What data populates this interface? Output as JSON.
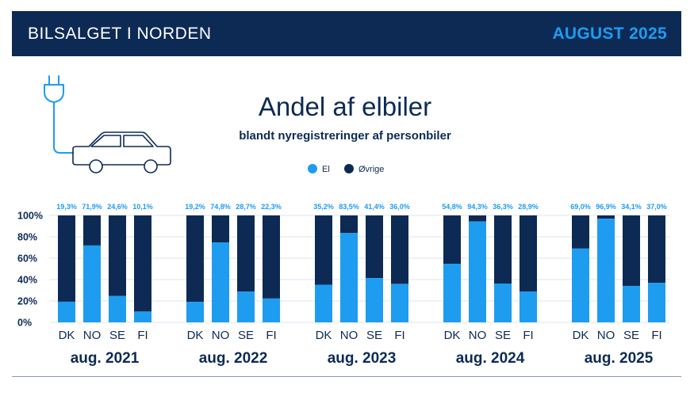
{
  "header": {
    "left": "BILSALGET I NORDEN",
    "right": "AUGUST 2025"
  },
  "icons": [
    "plug-icon",
    "car-icon"
  ],
  "colors": {
    "header_bg": "#0d2a55",
    "accent": "#1e9cf0",
    "el": "#1e9cf0",
    "ovrige": "#0d2a55"
  },
  "chart_data": {
    "type": "bar",
    "stacked": true,
    "title": "Andel af elbiler",
    "subtitle": "blandt nyregistreringer af personbiler",
    "legend": [
      "El",
      "Øvrige"
    ],
    "y_ticks": [
      "0%",
      "20%",
      "40%",
      "60%",
      "80%",
      "100%"
    ],
    "ylim": [
      0,
      100
    ],
    "groups": [
      {
        "label": "aug. 2021",
        "categories": [
          "DK",
          "NO",
          "SE",
          "FI"
        ],
        "values": [
          19.3,
          71.9,
          24.6,
          10.1
        ],
        "labels": [
          "19,3%",
          "71,9%",
          "24,6%",
          "10,1%"
        ]
      },
      {
        "label": "aug. 2022",
        "categories": [
          "DK",
          "NO",
          "SE",
          "FI"
        ],
        "values": [
          19.2,
          74.8,
          28.7,
          22.3
        ],
        "labels": [
          "19,2%",
          "74,8%",
          "28,7%",
          "22,3%"
        ]
      },
      {
        "label": "aug. 2023",
        "categories": [
          "DK",
          "NO",
          "SE",
          "FI"
        ],
        "values": [
          35.2,
          83.5,
          41.4,
          36.0
        ],
        "labels": [
          "35,2%",
          "83,5%",
          "41,4%",
          "36,0%"
        ]
      },
      {
        "label": "aug. 2024",
        "categories": [
          "DK",
          "NO",
          "SE",
          "FI"
        ],
        "values": [
          54.8,
          94.3,
          36.3,
          28.9
        ],
        "labels": [
          "54,8%",
          "94,3%",
          "36,3%",
          "28,9%"
        ]
      },
      {
        "label": "aug. 2025",
        "categories": [
          "DK",
          "NO",
          "SE",
          "FI"
        ],
        "values": [
          69.0,
          96.9,
          34.1,
          37.0
        ],
        "labels": [
          "69,0%",
          "96,9%",
          "34,1%",
          "37,0%"
        ]
      }
    ]
  }
}
